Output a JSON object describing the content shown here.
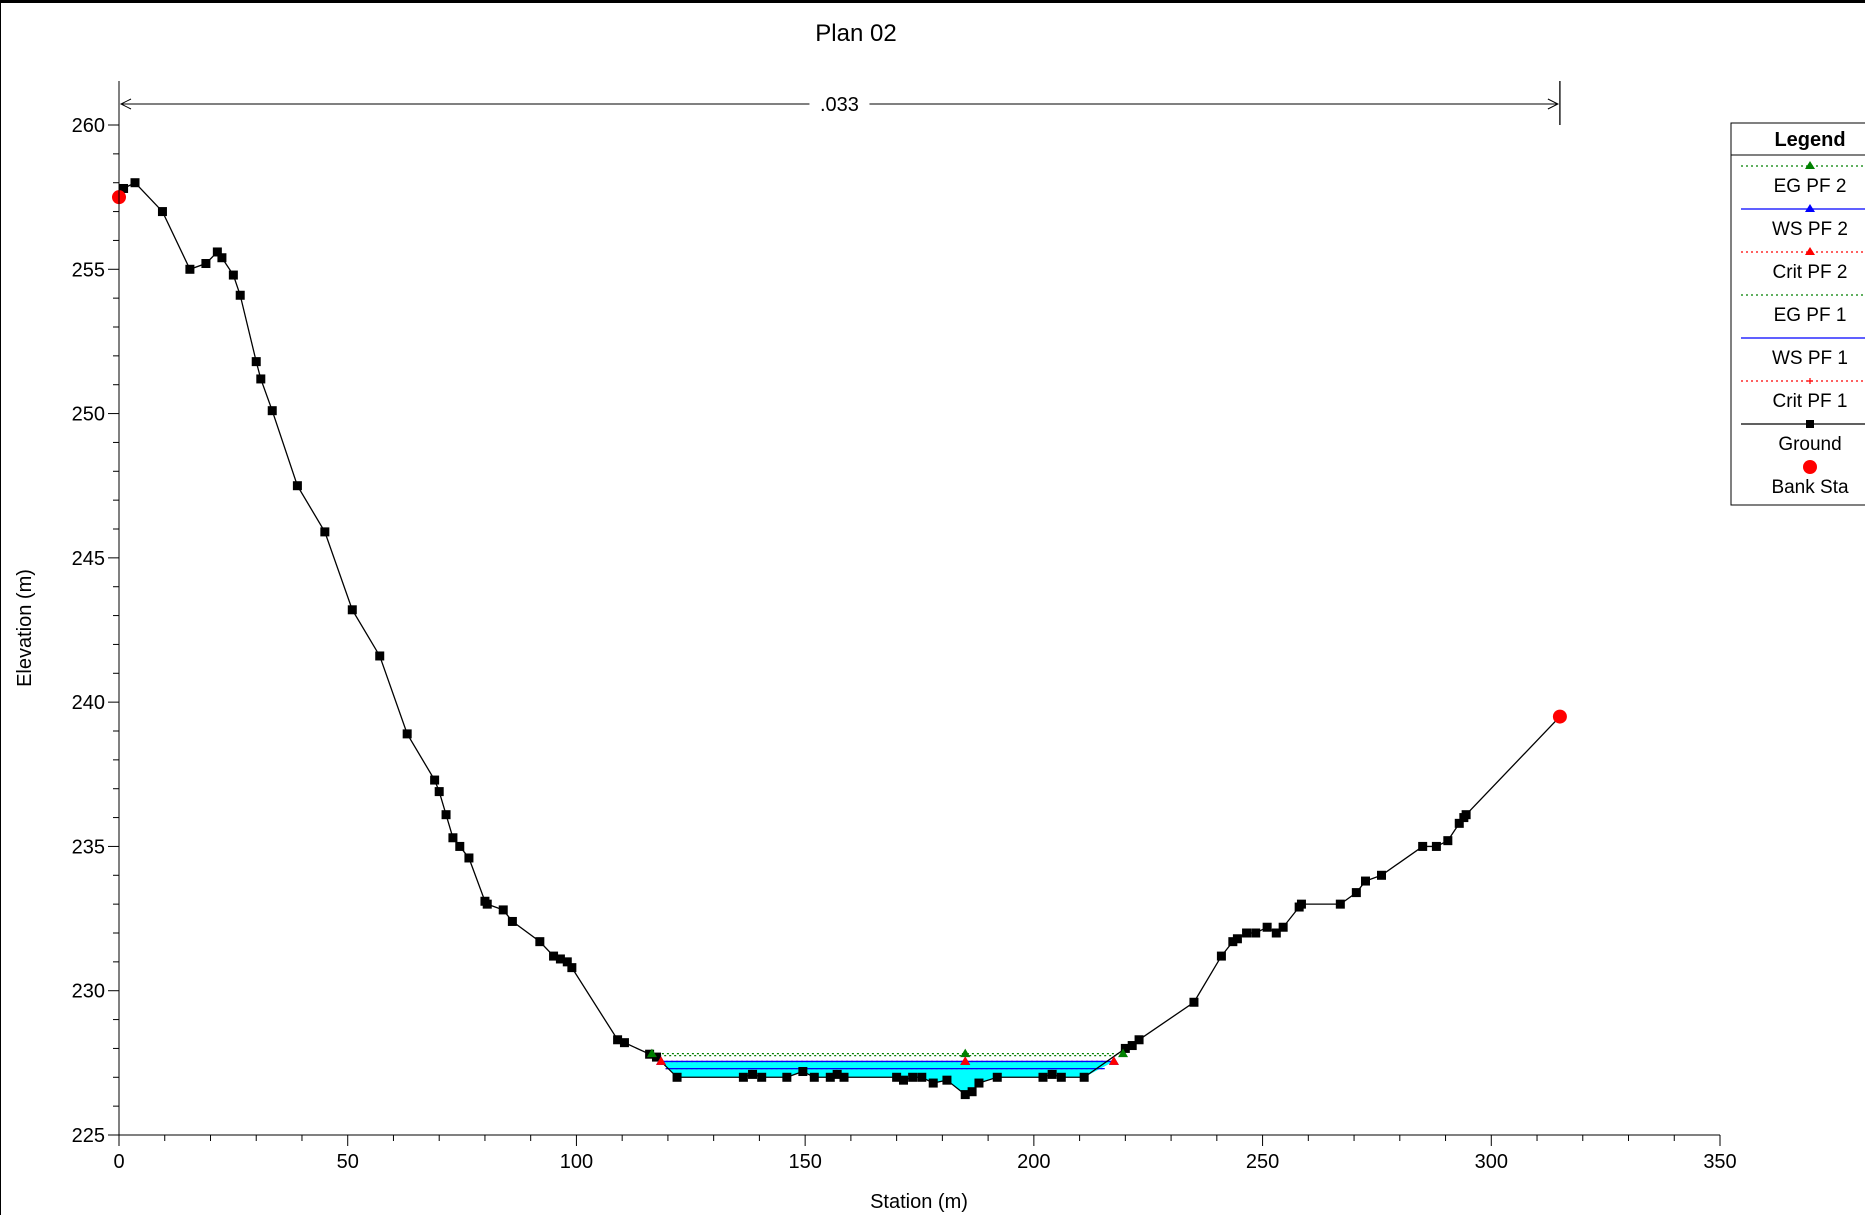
{
  "chart_data": {
    "type": "line",
    "title": "Plan 02",
    "xlabel": "Station (m)",
    "ylabel": "Elevation (m)",
    "xlim": [
      0,
      350
    ],
    "ylim": [
      225,
      260
    ],
    "xticks": [
      "0",
      "50",
      "100",
      "150",
      "200",
      "250",
      "300",
      "350"
    ],
    "yticks": [
      "225",
      "230",
      "235",
      "240",
      "245",
      "250",
      "255",
      "260"
    ],
    "manning": {
      "label": ".033",
      "from_station": 0,
      "to_station": 315
    },
    "legend_title": "Legend",
    "legend_position": "right",
    "series": [
      {
        "name": "EG PF 2",
        "color": "#008000",
        "style": "dotted",
        "marker": "triangle",
        "elevation": 227.82,
        "from_station": 116.5,
        "to_station": 219.5
      },
      {
        "name": "WS PF 2",
        "color": "#0000ff",
        "style": "solid",
        "marker": "triangle",
        "elevation": 227.55,
        "from_station": 118.5,
        "to_station": 217.5
      },
      {
        "name": "Crit PF 2",
        "color": "#ff0000",
        "style": "dotted",
        "marker": "triangle",
        "elevation": 227.55,
        "from_station": 118.5,
        "to_station": 217.5
      },
      {
        "name": "EG PF 1",
        "color": "#008000",
        "style": "dotted",
        "marker": "none",
        "elevation": 227.75,
        "from_station": 117,
        "to_station": 219
      },
      {
        "name": "WS PF 1",
        "color": "#0000ff",
        "style": "solid",
        "marker": "none",
        "elevation": 227.3,
        "from_station": 119.5,
        "to_station": 215.5
      },
      {
        "name": "Crit PF 1",
        "color": "#ff0000",
        "style": "dotted",
        "marker": "plus",
        "elevation": 227.3,
        "from_station": 119.5,
        "to_station": 215.5
      },
      {
        "name": "Ground",
        "color": "#000000",
        "style": "solid",
        "marker": "square",
        "x": [
          0,
          1,
          3.5,
          9.5,
          15.5,
          19,
          21.5,
          22.5,
          25,
          26.5,
          30,
          31,
          33.5,
          39,
          45,
          51,
          57,
          63,
          69,
          70,
          71.5,
          73,
          74.5,
          76.5,
          80,
          80.5,
          84,
          86,
          92,
          95,
          96.5,
          98,
          99,
          109,
          110.5,
          116,
          117.5,
          122,
          136.5,
          138.5,
          140.5,
          146,
          149.5,
          152,
          155.5,
          157,
          158.5,
          170,
          171.5,
          173.5,
          175.5,
          178,
          181,
          185,
          186.5,
          188,
          192,
          202,
          204,
          206,
          211,
          220,
          221.5,
          223,
          235,
          241,
          243.5,
          244.5,
          246.5,
          248.5,
          251,
          253,
          254.5,
          258,
          258.5,
          267,
          270.5,
          272.5,
          276,
          285,
          288,
          290.5,
          293,
          294,
          294.5,
          315
        ],
        "y": [
          257.5,
          257.8,
          258,
          257,
          255,
          255.2,
          255.6,
          255.4,
          254.8,
          254.1,
          251.8,
          251.2,
          250.1,
          247.5,
          245.9,
          243.2,
          241.6,
          238.9,
          237.3,
          236.9,
          236.1,
          235.3,
          235,
          234.6,
          233.1,
          233,
          232.8,
          232.4,
          231.7,
          231.2,
          231.1,
          231,
          230.8,
          228.3,
          228.2,
          227.8,
          227.7,
          227,
          227,
          227.1,
          227,
          227,
          227.2,
          227,
          227,
          227.1,
          227,
          227,
          226.9,
          227,
          227,
          226.8,
          226.9,
          226.4,
          226.5,
          226.8,
          227,
          227,
          227.1,
          227,
          227,
          228,
          228.1,
          228.3,
          229.6,
          231.2,
          231.7,
          231.8,
          232,
          232,
          232.2,
          232,
          232.2,
          232.9,
          233,
          233,
          233.4,
          233.8,
          234,
          235,
          235,
          235.2,
          235.8,
          236,
          236.1,
          239.5
        ]
      },
      {
        "name": "Bank Sta",
        "color": "#ff0000",
        "style": "none",
        "marker": "circle",
        "x": [
          0,
          315
        ],
        "y": [
          257.5,
          239.5
        ]
      }
    ]
  }
}
